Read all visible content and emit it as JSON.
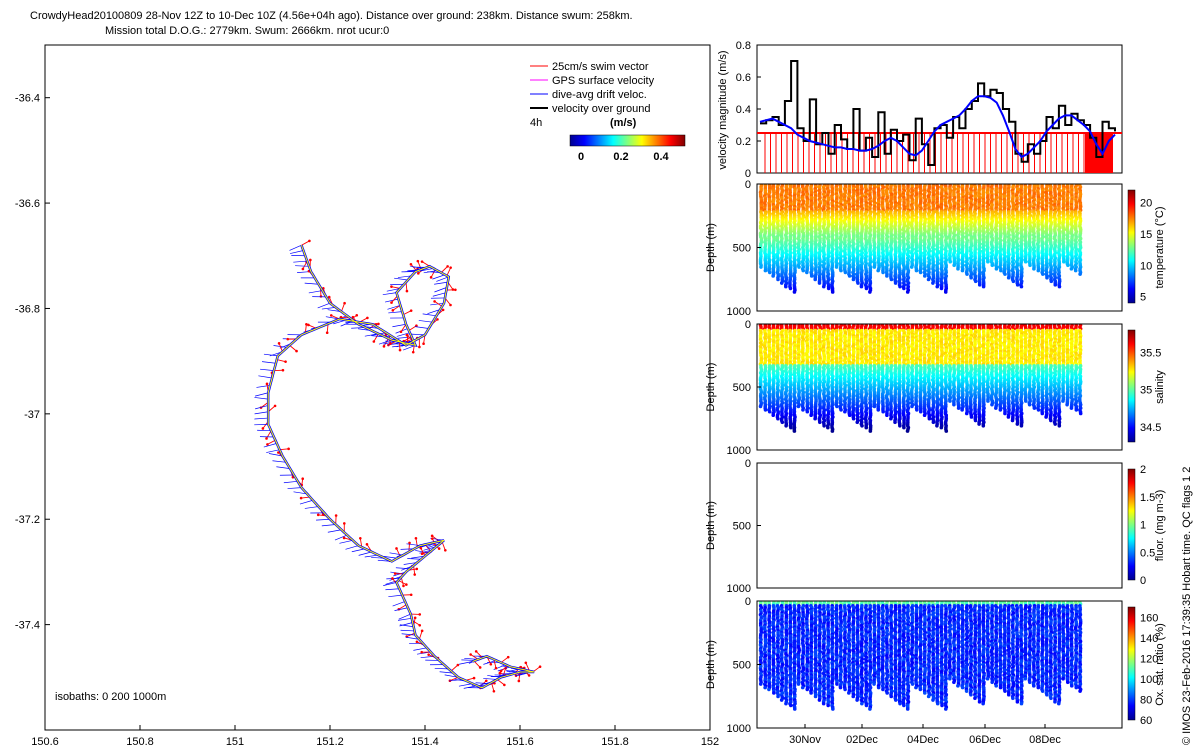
{
  "title_line1": "CrowdyHead20100809 28-Nov 12Z to 10-Dec 10Z (4.56e+04h ago). Distance over ground: 238km. Distance swum: 258km.",
  "title_line2": "Mission total D.O.G.: 2779km. Swum: 2666km. nrot ucur:0",
  "footer_note": "© IMOS 23-Feb-2016 17:39:35 Hobart time. QC flags 1  2",
  "chart_data": [
    {
      "type": "line",
      "id": "track_map",
      "xlim": [
        150.6,
        152.0
      ],
      "ylim": [
        -37.6,
        -36.3
      ],
      "x_ticks": [
        "150.6",
        "150.8",
        "151",
        "151.2",
        "151.4",
        "151.6",
        "151.8",
        "152"
      ],
      "y_ticks": [
        "-36.4",
        "-36.6",
        "-36.8",
        "-37",
        "-37.2",
        "-37.4"
      ],
      "legend": [
        {
          "label": "25cm/s swim vector",
          "color": "#ff0000"
        },
        {
          "label": "GPS surface velocity",
          "color": "#ff00ff"
        },
        {
          "label": "dive-avg drift veloc.",
          "color": "#0000ff"
        },
        {
          "label": "velocity over ground",
          "color": "#000000"
        }
      ],
      "legend_time": "4h",
      "colorbar_label": "(m/s)",
      "colorbar_ticks": [
        "0",
        "0.2",
        "0.4"
      ],
      "isobaths_text": "isobaths: 0   200  1000m",
      "track": [
        [
          151.14,
          -36.68
        ],
        [
          151.16,
          -36.73
        ],
        [
          151.2,
          -36.79
        ],
        [
          151.26,
          -36.83
        ],
        [
          151.33,
          -36.86
        ],
        [
          151.38,
          -36.87
        ],
        [
          151.36,
          -36.83
        ],
        [
          151.34,
          -36.77
        ],
        [
          151.38,
          -36.73
        ],
        [
          151.41,
          -36.72
        ],
        [
          151.45,
          -36.74
        ],
        [
          151.44,
          -36.79
        ],
        [
          151.4,
          -36.85
        ],
        [
          151.36,
          -36.87
        ],
        [
          151.29,
          -36.83
        ],
        [
          151.22,
          -36.82
        ],
        [
          151.14,
          -36.85
        ],
        [
          151.09,
          -36.89
        ],
        [
          151.07,
          -36.96
        ],
        [
          151.07,
          -37.02
        ],
        [
          151.1,
          -37.08
        ],
        [
          151.14,
          -37.14
        ],
        [
          151.2,
          -37.2
        ],
        [
          151.26,
          -37.25
        ],
        [
          151.33,
          -37.28
        ],
        [
          151.39,
          -37.25
        ],
        [
          151.44,
          -37.24
        ],
        [
          151.4,
          -37.27
        ],
        [
          151.36,
          -37.3
        ],
        [
          151.34,
          -37.32
        ],
        [
          151.37,
          -37.38
        ],
        [
          151.38,
          -37.42
        ],
        [
          151.42,
          -37.46
        ],
        [
          151.47,
          -37.5
        ],
        [
          151.52,
          -37.52
        ],
        [
          151.56,
          -37.5
        ],
        [
          151.6,
          -37.49
        ],
        [
          151.63,
          -37.49
        ],
        [
          151.58,
          -37.48
        ],
        [
          151.53,
          -37.46
        ],
        [
          151.5,
          -37.47
        ]
      ]
    },
    {
      "type": "line",
      "id": "velocity",
      "ylabel": "velocity magnitude (m/s)",
      "ylim": [
        0,
        0.8
      ],
      "y_ticks": [
        "0",
        "0.2",
        "0.4",
        "0.6",
        "0.8"
      ],
      "reference_level": 0.25,
      "series": [
        {
          "color": "#000000",
          "values": [
            0.31,
            0.33,
            0.35,
            0.3,
            0.45,
            0.7,
            0.28,
            0.2,
            0.46,
            0.18,
            0.25,
            0.12,
            0.3,
            0.21,
            0.15,
            0.4,
            0.14,
            0.22,
            0.1,
            0.38,
            0.12,
            0.27,
            0.2,
            0.24,
            0.08,
            0.34,
            0.18,
            0.05,
            0.28,
            0.3,
            0.22,
            0.35,
            0.28,
            0.4,
            0.45,
            0.56,
            0.48,
            0.52,
            0.5,
            0.4,
            0.32,
            0.12,
            0.07,
            0.18,
            0.12,
            0.2,
            0.35,
            0.28,
            0.42,
            0.3,
            0.37,
            0.33,
            0.3,
            0.22,
            0.1,
            0.32,
            0.28,
            0.26
          ]
        },
        {
          "color": "#0000ff",
          "values": [
            0.32,
            0.33,
            0.34,
            0.32,
            0.3,
            0.28,
            0.24,
            0.22,
            0.2,
            0.19,
            0.18,
            0.17,
            0.16,
            0.16,
            0.15,
            0.15,
            0.14,
            0.14,
            0.15,
            0.17,
            0.2,
            0.22,
            0.2,
            0.16,
            0.12,
            0.11,
            0.14,
            0.2,
            0.26,
            0.3,
            0.32,
            0.34,
            0.36,
            0.4,
            0.45,
            0.48,
            0.48,
            0.47,
            0.44,
            0.36,
            0.26,
            0.15,
            0.1,
            0.12,
            0.16,
            0.2,
            0.26,
            0.3,
            0.34,
            0.36,
            0.36,
            0.33,
            0.3,
            0.26,
            0.18,
            0.12,
            0.2,
            0.24
          ]
        }
      ]
    },
    {
      "type": "scatter",
      "id": "temperature",
      "ylabel": "Depth (m)",
      "cbar_label": "temperature (°C)",
      "ylim": [
        0,
        1000
      ],
      "y_ticks": [
        "0",
        "500",
        "1000"
      ],
      "cbar_ticks": [
        "20",
        "15",
        "10",
        "5"
      ],
      "cbar_range": [
        4,
        22
      ]
    },
    {
      "type": "scatter",
      "id": "salinity",
      "ylabel": "Depth (m)",
      "cbar_label": "salinity",
      "ylim": [
        0,
        1000
      ],
      "y_ticks": [
        "0",
        "500",
        "1000"
      ],
      "cbar_ticks": [
        "35.5",
        "35",
        "34.5"
      ],
      "cbar_range": [
        34.3,
        35.8
      ]
    },
    {
      "type": "scatter",
      "id": "fluor",
      "ylabel": "Depth (m)",
      "cbar_label": "fluor. (mg m-3)",
      "ylim": [
        0,
        1000
      ],
      "y_ticks": [
        "0",
        "500",
        "1000"
      ],
      "cbar_ticks": [
        "2",
        "1.5",
        "1",
        "0.5",
        "0"
      ],
      "cbar_range": [
        0,
        2
      ]
    },
    {
      "type": "scatter",
      "id": "oxygen",
      "ylabel": "Depth (m)",
      "cbar_label": "Ox. sat. ratio (%)",
      "ylim": [
        0,
        1000
      ],
      "y_ticks": [
        "0",
        "500",
        "1000"
      ],
      "cbar_ticks": [
        "160",
        "140",
        "120",
        "100",
        "80",
        "60"
      ],
      "cbar_range": [
        60,
        170
      ],
      "x_ticks": [
        "30Nov",
        "02Dec",
        "04Dec",
        "06Dec",
        "08Dec"
      ]
    }
  ]
}
